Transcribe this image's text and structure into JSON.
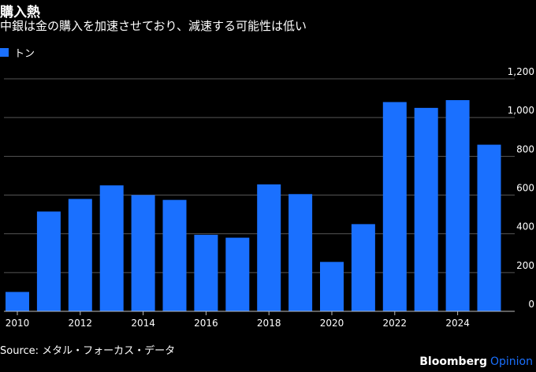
{
  "title": "購入熱",
  "subtitle": "中銀は金の購入を加速させており、減速する可能性は低い",
  "legend": {
    "label": "トン",
    "color": "#1a70ff"
  },
  "source": "Source: メタル・フォーカス・データ",
  "brand": {
    "name": "Bloomberg",
    "suffix": "Opinion"
  },
  "chart_data": {
    "type": "bar",
    "title": "購入熱",
    "ylabel": "トン",
    "xlabel": "",
    "categories": [
      "2010",
      "2011",
      "2012",
      "2013",
      "2014",
      "2015",
      "2016",
      "2017",
      "2018",
      "2019",
      "2020",
      "2021",
      "2022",
      "2023",
      "2024",
      "2025"
    ],
    "x_tick_labels": [
      "2010",
      "2012",
      "2014",
      "2016",
      "2018",
      "2020",
      "2022",
      "2024"
    ],
    "values": [
      100,
      515,
      580,
      650,
      600,
      575,
      395,
      380,
      655,
      605,
      255,
      450,
      1080,
      1050,
      1090,
      860
    ],
    "ylim": [
      0,
      1200
    ],
    "y_ticks": [
      0,
      200,
      400,
      600,
      800,
      1000,
      1200
    ],
    "y_tick_labels": [
      "0",
      "200",
      "400",
      "600",
      "800",
      "1,000",
      "1,200"
    ],
    "grid": true,
    "legend_position": "top-left"
  }
}
